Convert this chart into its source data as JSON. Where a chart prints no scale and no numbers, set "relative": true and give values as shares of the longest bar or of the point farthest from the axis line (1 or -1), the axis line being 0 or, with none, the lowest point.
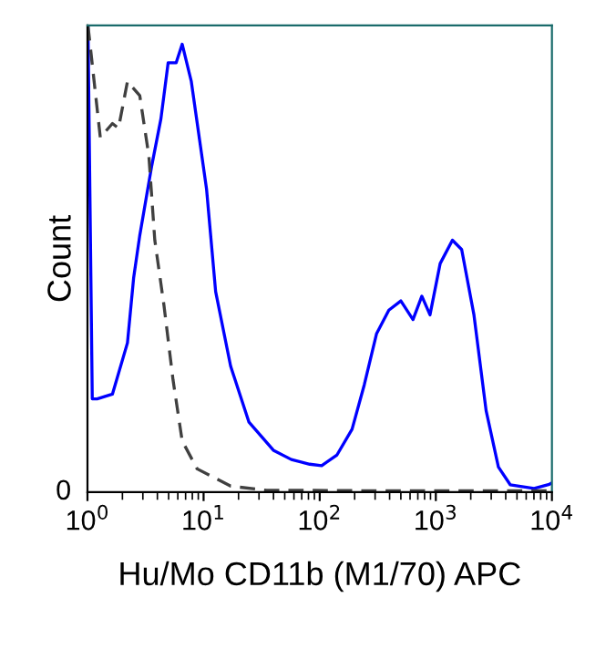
{
  "chart_data": {
    "type": "line",
    "relative": true,
    "xlabel": "Hu/Mo CD11b (M1/70) APC",
    "ylabel": "Count",
    "log": "x",
    "xlim": [
      1,
      10000
    ],
    "xticks": [
      {
        "value": 1,
        "label": "10$^{0}$"
      },
      {
        "value": 10,
        "label": "10$^{1}$"
      },
      {
        "value": 100,
        "label": "10$^{2}$"
      },
      {
        "value": 1000,
        "label": "10$^{3}$"
      },
      {
        "value": 10000,
        "label": "10$^{4}$"
      }
    ],
    "annotations": [
      "0"
    ],
    "grid": false,
    "legend": false,
    "series": [
      {
        "color": "#0000ff",
        "line_style": "solid",
        "x": [
          1.01,
          1.1,
          1.21,
          1.64,
          2.21,
          2.5,
          2.82,
          3.58,
          4.29,
          4.95,
          5.8,
          6.54,
          7.84,
          10.6,
          12.7,
          17.1,
          24.6,
          39.9,
          57,
          82,
          104,
          141,
          190,
          242,
          309,
          394,
          500,
          636,
          758,
          891,
          1090,
          1390,
          1670,
          2130,
          2710,
          3460,
          4370,
          7020,
          9500,
          10000
        ],
        "values": [
          1.0,
          0.2,
          0.2,
          0.21,
          0.32,
          0.46,
          0.55,
          0.7,
          0.8,
          0.92,
          0.92,
          0.96,
          0.88,
          0.65,
          0.43,
          0.27,
          0.15,
          0.09,
          0.07,
          0.06,
          0.057,
          0.08,
          0.135,
          0.23,
          0.34,
          0.39,
          0.41,
          0.37,
          0.42,
          0.38,
          0.49,
          0.54,
          0.52,
          0.38,
          0.175,
          0.054,
          0.016,
          0.008,
          0.017,
          0.02
        ]
      },
      {
        "color": "#404040",
        "line_style": "dashed",
        "x": [
          1.01,
          1.29,
          1.64,
          1.85,
          2.21,
          2.82,
          3.38,
          3.8,
          4.56,
          5.46,
          6.54,
          8.8,
          17.1,
          35,
          82,
          300,
          1000,
          3000,
          10000
        ],
        "values": [
          1.0,
          0.76,
          0.79,
          0.78,
          0.88,
          0.85,
          0.72,
          0.54,
          0.4,
          0.24,
          0.11,
          0.05,
          0.013,
          0.004,
          0.004,
          0.003,
          0.003,
          0.003,
          0.003
        ]
      }
    ]
  }
}
